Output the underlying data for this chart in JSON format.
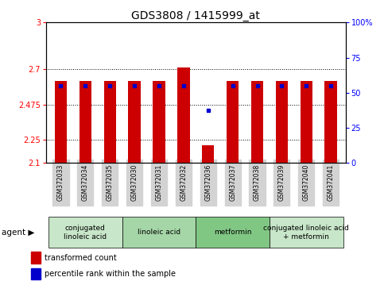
{
  "title": "GDS3808 / 1415999_at",
  "samples": [
    "GSM372033",
    "GSM372034",
    "GSM372035",
    "GSM372030",
    "GSM372031",
    "GSM372032",
    "GSM372036",
    "GSM372037",
    "GSM372038",
    "GSM372039",
    "GSM372040",
    "GSM372041"
  ],
  "red_values": [
    2.625,
    2.625,
    2.625,
    2.625,
    2.625,
    2.71,
    2.215,
    2.625,
    2.625,
    2.625,
    2.625,
    2.625
  ],
  "blue_values": [
    2.595,
    2.595,
    2.595,
    2.595,
    2.595,
    2.595,
    2.435,
    2.595,
    2.595,
    2.595,
    2.595,
    2.595
  ],
  "ymin": 2.1,
  "ymax": 3.0,
  "yticks": [
    2.1,
    2.25,
    2.475,
    2.7,
    3.0
  ],
  "ytick_labels": [
    "2.1",
    "2.25",
    "2.475",
    "2.7",
    "3"
  ],
  "right_yticks": [
    0,
    25,
    50,
    75,
    100
  ],
  "right_ytick_labels": [
    "0",
    "25",
    "50",
    "75",
    "100%"
  ],
  "dotted_lines": [
    2.7,
    2.475,
    2.25
  ],
  "bar_color": "#cc0000",
  "dot_color": "#0000cc",
  "bar_width": 0.5,
  "agent_groups": [
    {
      "label": "conjugated\nlinoleic acid",
      "start": 0,
      "end": 2,
      "color": "#c8e6c9"
    },
    {
      "label": "linoleic acid",
      "start": 3,
      "end": 5,
      "color": "#a5d6a7"
    },
    {
      "label": "metformin",
      "start": 6,
      "end": 8,
      "color": "#81c784"
    },
    {
      "label": "conjugated linoleic acid\n+ metformin",
      "start": 9,
      "end": 11,
      "color": "#c8e6c9"
    }
  ],
  "legend_items": [
    {
      "label": "transformed count",
      "color": "#cc0000"
    },
    {
      "label": "percentile rank within the sample",
      "color": "#0000cc"
    }
  ],
  "title_fontsize": 10,
  "tick_fontsize": 7,
  "sample_fontsize": 5.5,
  "agent_fontsize": 6.5,
  "legend_fontsize": 7
}
